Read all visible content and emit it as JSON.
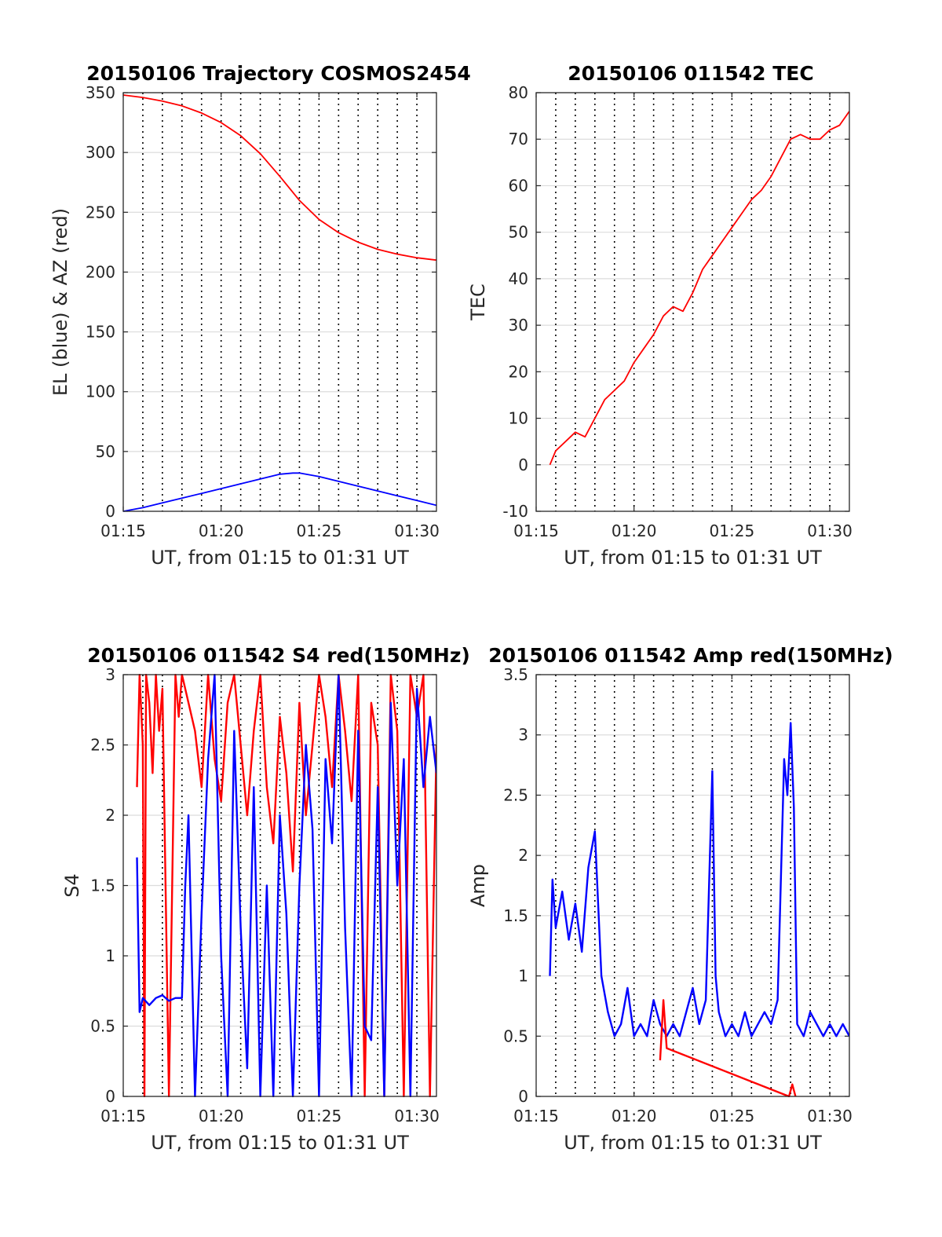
{
  "chart_data": [
    {
      "type": "line",
      "title": "20150106 Trajectory COSMOS2454",
      "xlabel": "UT, from 01:15 to 01:31 UT",
      "ylabel": "EL (blue) & AZ (red)",
      "xlim": [
        "01:15",
        "01:31"
      ],
      "ylim": [
        0,
        350
      ],
      "xticks": [
        "01:15",
        "01:20",
        "01:25",
        "01:30"
      ],
      "yticks": [
        "0",
        "50",
        "100",
        "150",
        "200",
        "250",
        "300",
        "350"
      ],
      "grid": true,
      "series": [
        {
          "color": "#ff0000",
          "x": [
            "01:15",
            "01:16",
            "01:17",
            "01:18",
            "01:19",
            "01:20",
            "01:21",
            "01:22",
            "01:23",
            "01:24",
            "01:25",
            "01:26",
            "01:27",
            "01:28",
            "01:29",
            "01:30",
            "01:31"
          ],
          "y": [
            348,
            346,
            343,
            339,
            333,
            325,
            314,
            299,
            280,
            260,
            244,
            233,
            225,
            219,
            215,
            212,
            210
          ]
        },
        {
          "color": "#0000ff",
          "x": [
            "01:15",
            "01:16",
            "01:17",
            "01:18",
            "01:19",
            "01:20",
            "01:21",
            "01:22",
            "01:23",
            "01:23:40",
            "01:24",
            "01:25",
            "01:26",
            "01:27",
            "01:28",
            "01:29",
            "01:30",
            "01:31"
          ],
          "y": [
            0,
            3,
            7,
            11,
            15,
            19,
            23,
            27,
            31,
            32,
            32,
            29,
            25,
            21,
            17,
            13,
            9,
            5
          ]
        }
      ]
    },
    {
      "type": "line",
      "title": "20150106 011542 TEC",
      "xlabel": "UT, from 01:15 to 01:31 UT",
      "ylabel": "TEC",
      "xlim": [
        "01:15",
        "01:31"
      ],
      "ylim": [
        -10,
        80
      ],
      "xticks": [
        "01:15",
        "01:20",
        "01:25",
        "01:30"
      ],
      "yticks": [
        "-10",
        "0",
        "10",
        "20",
        "30",
        "40",
        "50",
        "60",
        "70",
        "80"
      ],
      "grid": true,
      "series": [
        {
          "color": "#ff0000",
          "x": [
            "01:15:42",
            "01:16",
            "01:16:30",
            "01:17",
            "01:17:30",
            "01:18",
            "01:18:30",
            "01:19",
            "01:19:30",
            "01:20",
            "01:20:30",
            "01:21",
            "01:21:30",
            "01:22",
            "01:22:30",
            "01:23",
            "01:23:30",
            "01:24",
            "01:24:30",
            "01:25",
            "01:25:30",
            "01:26",
            "01:26:30",
            "01:27",
            "01:27:30",
            "01:28",
            "01:28:30",
            "01:29",
            "01:29:30",
            "01:30",
            "01:30:30",
            "01:31"
          ],
          "y": [
            0,
            3,
            5,
            7,
            6,
            10,
            14,
            16,
            18,
            22,
            25,
            28,
            32,
            34,
            33,
            37,
            42,
            45,
            48,
            51,
            54,
            57,
            59,
            62,
            66,
            70,
            71,
            70,
            70,
            72,
            73,
            76
          ]
        }
      ]
    },
    {
      "type": "line",
      "title": "20150106 011542 S4 red(150MHz)",
      "xlabel": "UT, from 01:15 to 01:31 UT",
      "ylabel": "S4",
      "xlim": [
        "01:15",
        "01:31"
      ],
      "ylim": [
        0,
        3
      ],
      "xticks": [
        "01:15",
        "01:20",
        "01:25",
        "01:30"
      ],
      "yticks": [
        "0",
        "0.5",
        "1",
        "1.5",
        "2",
        "2.5",
        "3"
      ],
      "grid": true,
      "series": [
        {
          "color": "#ff0000",
          "x": [
            "01:15:42",
            "01:15:50",
            "01:16",
            "01:16:05",
            "01:16:10",
            "01:16:20",
            "01:16:30",
            "01:16:40",
            "01:16:50",
            "01:17",
            "01:17:20",
            "01:17:40",
            "01:17:50",
            "01:18",
            "01:18:20",
            "01:18:40",
            "01:19",
            "01:19:20",
            "01:19:40",
            "01:20",
            "01:20:20",
            "01:20:40",
            "01:21",
            "01:21:20",
            "01:21:40",
            "01:22",
            "01:22:20",
            "01:22:40",
            "01:23",
            "01:23:20",
            "01:23:40",
            "01:24",
            "01:24:20",
            "01:24:40",
            "01:25",
            "01:25:20",
            "01:25:40",
            "01:26",
            "01:26:20",
            "01:26:40",
            "01:27",
            "01:27:20",
            "01:27:40",
            "01:28",
            "01:28:20",
            "01:28:40",
            "01:29",
            "01:29:20",
            "01:29:40",
            "01:30",
            "01:30:20",
            "01:30:40",
            "01:31"
          ],
          "y": [
            2.2,
            3.0,
            2.5,
            0.0,
            3.0,
            2.8,
            2.3,
            3.0,
            2.6,
            2.9,
            0.0,
            3.0,
            2.7,
            3.0,
            2.8,
            2.6,
            2.2,
            3.0,
            2.4,
            2.1,
            2.8,
            3.0,
            2.5,
            2.0,
            2.6,
            3.0,
            2.2,
            1.8,
            2.7,
            2.3,
            1.6,
            2.8,
            2.0,
            2.5,
            3.0,
            2.7,
            2.2,
            3.0,
            2.6,
            2.1,
            3.0,
            0.0,
            2.8,
            2.5,
            0.0,
            3.0,
            2.6,
            0.0,
            3.0,
            2.7,
            3.0,
            0.0,
            2.5
          ]
        },
        {
          "color": "#0000ff",
          "x": [
            "01:15:42",
            "01:15:50",
            "01:16",
            "01:16:20",
            "01:16:40",
            "01:17",
            "01:17:20",
            "01:17:40",
            "01:18",
            "01:18:10",
            "01:18:20",
            "01:18:40",
            "01:19",
            "01:19:20",
            "01:19:40",
            "01:20",
            "01:20:20",
            "01:20:40",
            "01:21",
            "01:21:20",
            "01:21:40",
            "01:22",
            "01:22:20",
            "01:22:40",
            "01:23",
            "01:23:20",
            "01:23:40",
            "01:24",
            "01:24:20",
            "01:24:40",
            "01:25",
            "01:25:20",
            "01:25:40",
            "01:26",
            "01:26:20",
            "01:26:40",
            "01:27",
            "01:27:20",
            "01:27:40",
            "01:28",
            "01:28:20",
            "01:28:40",
            "01:29",
            "01:29:20",
            "01:29:40",
            "01:30",
            "01:30:20",
            "01:30:40",
            "01:31"
          ],
          "y": [
            1.7,
            0.6,
            0.7,
            0.65,
            0.7,
            0.72,
            0.68,
            0.7,
            0.7,
            1.5,
            2.0,
            0.0,
            1.3,
            2.4,
            3.0,
            1.0,
            0.0,
            2.6,
            1.2,
            0.2,
            2.2,
            0.0,
            1.5,
            0.0,
            2.0,
            1.3,
            0.0,
            1.5,
            2.5,
            1.9,
            0.0,
            2.4,
            1.8,
            3.0,
            1.2,
            0.0,
            2.6,
            0.5,
            0.4,
            2.2,
            0.0,
            2.8,
            1.5,
            2.4,
            0.0,
            2.9,
            2.2,
            2.7,
            2.3
          ]
        }
      ]
    },
    {
      "type": "line",
      "title": "20150106 011542 Amp red(150MHz)",
      "xlabel": "UT, from 01:15 to 01:31 UT",
      "ylabel": "Amp",
      "xlim": [
        "01:15",
        "01:31"
      ],
      "ylim": [
        0,
        3.5
      ],
      "xticks": [
        "01:15",
        "01:20",
        "01:25",
        "01:30"
      ],
      "yticks": [
        "0",
        "0.5",
        "1",
        "1.5",
        "2",
        "2.5",
        "3",
        "3.5"
      ],
      "grid": true,
      "series": [
        {
          "color": "#0000ff",
          "x": [
            "01:15:42",
            "01:15:50",
            "01:16",
            "01:16:20",
            "01:16:40",
            "01:17",
            "01:17:20",
            "01:17:40",
            "01:18",
            "01:18:20",
            "01:18:40",
            "01:19",
            "01:19:20",
            "01:19:40",
            "01:20",
            "01:20:20",
            "01:20:40",
            "01:21",
            "01:21:20",
            "01:21:40",
            "01:22",
            "01:22:20",
            "01:22:40",
            "01:23",
            "01:23:20",
            "01:23:40",
            "01:24",
            "01:24:10",
            "01:24:20",
            "01:24:40",
            "01:25",
            "01:25:20",
            "01:25:40",
            "01:26",
            "01:26:20",
            "01:26:40",
            "01:27",
            "01:27:20",
            "01:27:40",
            "01:27:50",
            "01:28",
            "01:28:10",
            "01:28:20",
            "01:28:40",
            "01:29",
            "01:29:20",
            "01:29:40",
            "01:30",
            "01:30:20",
            "01:30:40",
            "01:31"
          ],
          "y": [
            1.0,
            1.8,
            1.4,
            1.7,
            1.3,
            1.6,
            1.2,
            1.9,
            2.2,
            1.0,
            0.7,
            0.5,
            0.6,
            0.9,
            0.5,
            0.6,
            0.5,
            0.8,
            0.6,
            0.5,
            0.6,
            0.5,
            0.7,
            0.9,
            0.6,
            0.8,
            2.7,
            1.0,
            0.7,
            0.5,
            0.6,
            0.5,
            0.7,
            0.5,
            0.6,
            0.7,
            0.6,
            0.8,
            2.8,
            2.5,
            3.1,
            2.4,
            0.6,
            0.5,
            0.7,
            0.6,
            0.5,
            0.6,
            0.5,
            0.6,
            0.5
          ]
        },
        {
          "color": "#ff0000",
          "x": [
            "01:21:20",
            "01:21:30",
            "01:21:40",
            "01:27:55",
            "01:28:05",
            "01:28:15"
          ],
          "y": [
            0.3,
            0.8,
            0.4,
            0.0,
            0.1,
            0.0
          ]
        }
      ]
    }
  ]
}
